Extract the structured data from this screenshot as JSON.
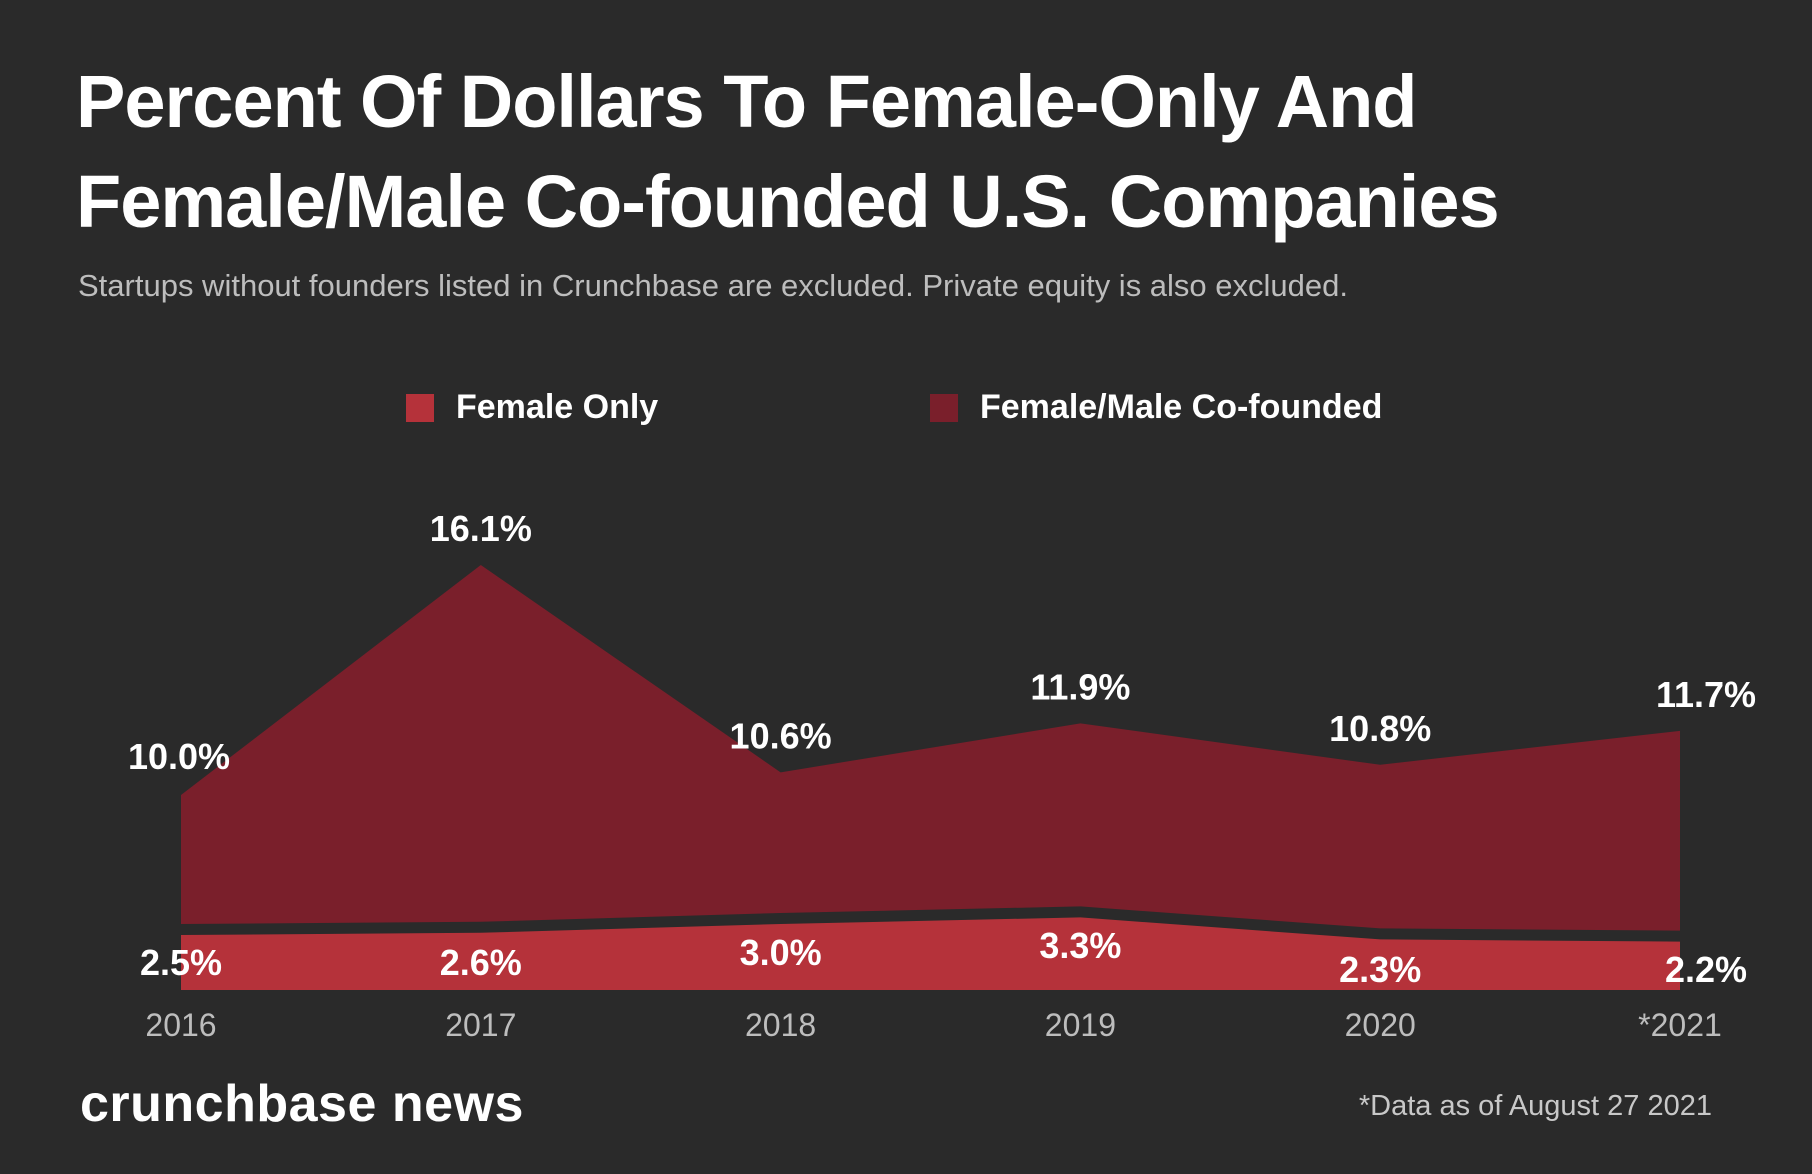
{
  "header": {
    "title": "Percent Of Dollars To Female-Only And Female/Male Co-founded U.S. Companies",
    "subtitle": "Startups without founders listed in Crunchbase are excluded. Private equity is also excluded."
  },
  "legend": {
    "items": [
      {
        "label": "Female Only",
        "color": "#b5323a"
      },
      {
        "label": "Female/Male Co-founded",
        "color": "#7a1f2b"
      }
    ]
  },
  "footer": {
    "brand": "crunchbase news",
    "note": "*Data as of August 27 2021"
  },
  "chart_data": {
    "type": "area",
    "title": "Percent Of Dollars To Female-Only And Female/Male Co-founded U.S. Companies",
    "subtitle": "Startups without founders listed in Crunchbase are excluded. Private equity is also excluded.",
    "categories": [
      "2016",
      "2017",
      "2018",
      "2019",
      "2020",
      "*2021"
    ],
    "series": [
      {
        "name": "Female Only",
        "color": "#b5323a",
        "values": [
          2.5,
          2.6,
          3.0,
          3.3,
          2.3,
          2.2
        ],
        "labels": [
          "2.5%",
          "2.6%",
          "3.0%",
          "3.3%",
          "2.3%",
          "2.2%"
        ]
      },
      {
        "name": "Female/Male Co-founded",
        "color": "#7a1f2b",
        "values": [
          10.0,
          16.1,
          10.6,
          11.9,
          10.8,
          11.7
        ],
        "labels": [
          "10.0%",
          "16.1%",
          "10.6%",
          "11.9%",
          "10.8%",
          "11.7%"
        ]
      }
    ],
    "xlabel": "",
    "ylabel": "",
    "ylim": [
      0,
      20
    ],
    "grid": false,
    "legend_position": "top-center"
  }
}
